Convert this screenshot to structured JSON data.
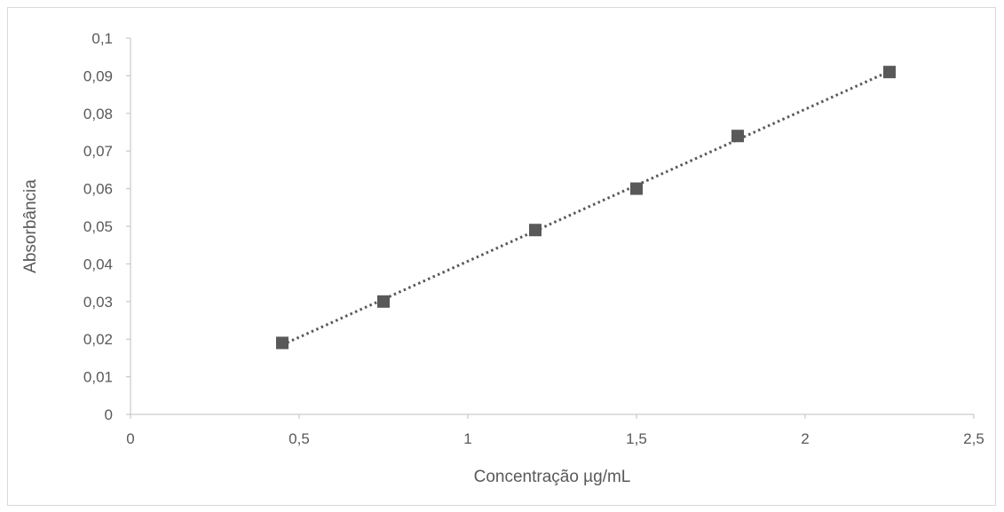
{
  "chart_data": {
    "type": "scatter",
    "title": "",
    "xlabel": "Concentração µg/mL",
    "ylabel": "Absorbância",
    "xlim": [
      0,
      2.5
    ],
    "ylim": [
      0,
      0.1
    ],
    "x_ticks": [
      {
        "value": 0,
        "label": "0"
      },
      {
        "value": 0.5,
        "label": "0,5"
      },
      {
        "value": 1,
        "label": "1"
      },
      {
        "value": 1.5,
        "label": "1,5"
      },
      {
        "value": 2,
        "label": "2"
      },
      {
        "value": 2.5,
        "label": "2,5"
      }
    ],
    "y_ticks": [
      {
        "value": 0,
        "label": "0"
      },
      {
        "value": 0.01,
        "label": "0,01"
      },
      {
        "value": 0.02,
        "label": "0,02"
      },
      {
        "value": 0.03,
        "label": "0,03"
      },
      {
        "value": 0.04,
        "label": "0,04"
      },
      {
        "value": 0.05,
        "label": "0,05"
      },
      {
        "value": 0.06,
        "label": "0,06"
      },
      {
        "value": 0.07,
        "label": "0,07"
      },
      {
        "value": 0.08,
        "label": "0,08"
      },
      {
        "value": 0.09,
        "label": "0,09"
      },
      {
        "value": 0.1,
        "label": "0,1"
      }
    ],
    "grid": false,
    "legend": "none",
    "trendline": {
      "type": "linear",
      "style": "dotted",
      "x_range": [
        0.45,
        2.25
      ]
    },
    "series": [
      {
        "marker": "square",
        "color": "#595959",
        "points": [
          {
            "x": 0.45,
            "y": 0.019
          },
          {
            "x": 0.75,
            "y": 0.03
          },
          {
            "x": 1.2,
            "y": 0.049
          },
          {
            "x": 1.5,
            "y": 0.06
          },
          {
            "x": 1.8,
            "y": 0.074
          },
          {
            "x": 2.25,
            "y": 0.091
          }
        ]
      }
    ],
    "colors": {
      "axis": "#bfbfbf",
      "text": "#595959",
      "trendline": "#595959",
      "frame": "#d9d9d9"
    }
  }
}
